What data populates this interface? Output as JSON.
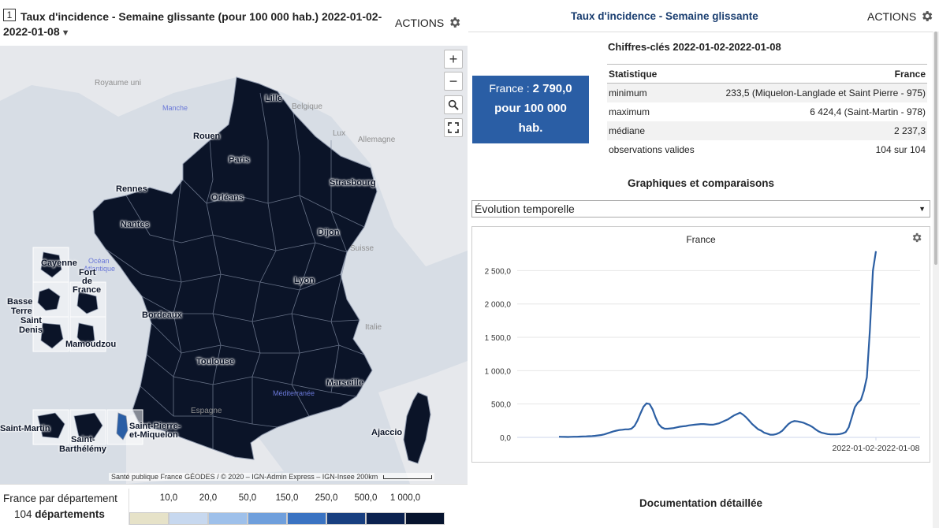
{
  "map_panel": {
    "number": "1",
    "title_line1": "Taux d'incidence - Semaine glissante (pour 100 000 hab.)  2022-01-02-",
    "title_line2": "2022-01-08",
    "actions_label": "ACTIONS",
    "zoom_in": "+",
    "zoom_out": "−",
    "attribution": "Santé publique France GÉODES / © 2020 – IGN-Admin Express – IGN-Insee  200km",
    "map_labels": {
      "royaume_uni": "Royaume uni",
      "belgique": "Belgique",
      "lux": "Lux",
      "allemagne": "Allemagne",
      "suisse": "Suisse",
      "italie": "Italie",
      "espagne": "Espagne",
      "manche": "Manche",
      "ocean_1": "Océan",
      "ocean_2": "Atlantique",
      "mediterranee": "Méditerranée"
    },
    "cities": {
      "lille": "Lille",
      "rouen": "Rouen",
      "paris": "Paris",
      "rennes": "Rennes",
      "orleans": "Orléans",
      "strasbourg": "Strasbourg",
      "nantes": "Nantes",
      "dijon": "Dijon",
      "lyon": "Lyon",
      "bordeaux": "Bordeaux",
      "toulouse": "Toulouse",
      "marseille": "Marseille",
      "ajaccio": "Ajaccio"
    },
    "overseas": {
      "cayenne": "Cayenne",
      "fort_1": "Fort",
      "fort_2": "de",
      "fort_3": "France",
      "basse_1": "Basse",
      "basse_2": "Terre",
      "saint_denis_1": "Saint",
      "saint_denis_2": "Denis",
      "mamoudzou": "Mamoudzou",
      "saint_martin": "Saint-Martin",
      "saint_barth_1": "Saint-",
      "saint_barth_2": "Barthélémy",
      "spm_1": "Saint-Pierre-",
      "spm_2": "et-Miquelon"
    },
    "legend": {
      "line1": "France par département",
      "count": "104",
      "unit": "départements",
      "ticks": [
        "10,0",
        "20,0",
        "50,0",
        "150,0",
        "250,0",
        "500,0",
        "1 000,0"
      ],
      "colors": [
        "#e6e2c8",
        "#c7d8ef",
        "#9ec0ea",
        "#6f9fdc",
        "#3a73c2",
        "#183f80",
        "#0b2250",
        "#07142e"
      ]
    }
  },
  "detail_panel": {
    "title": "Taux d'incidence - Semaine glissante",
    "actions_label": "ACTIONS",
    "kpi": {
      "prefix": "France : ",
      "value": "2 790,0",
      "line2": "pour 100 000",
      "line3": "hab."
    },
    "key_figures_title": "Chiffres-clés 2022-01-02-2022-01-08",
    "stats": {
      "col1": "Statistique",
      "col2": "France",
      "rows": [
        {
          "label": "minimum",
          "value": "233,5 (Miquelon-Langlade et Saint Pierre - 975)"
        },
        {
          "label": "maximum",
          "value": "6 424,4 (Saint-Martin - 978)"
        },
        {
          "label": "médiane",
          "value": "2 237,3"
        },
        {
          "label": "observations valides",
          "value": "104 sur 104"
        }
      ]
    },
    "charts_title": "Graphiques et comparaisons",
    "select_value": "Évolution temporelle",
    "documentation_title": "Documentation détaillée"
  },
  "colors": {
    "accent": "#2a5ea5",
    "title_blue": "#1a3e70",
    "map_fill": "#0b1428",
    "line": "#2c5fa3"
  },
  "chart_data": {
    "type": "line",
    "title": "France",
    "xlabel": "",
    "ylabel": "",
    "ylim": [
      0,
      2800
    ],
    "yticks": [
      0,
      500,
      1000,
      1500,
      2000,
      2500
    ],
    "ytick_labels": [
      "0,0",
      "500,0",
      "1 000,0",
      "1 500,0",
      "2 000,0",
      "2 500,0"
    ],
    "x_label_last": "2022-01-02-2022-01-08",
    "series": [
      {
        "name": "France",
        "values": [
          10,
          8,
          7,
          6,
          8,
          9,
          10,
          12,
          14,
          15,
          18,
          20,
          24,
          30,
          35,
          45,
          60,
          75,
          90,
          100,
          110,
          115,
          120,
          120,
          130,
          170,
          250,
          360,
          460,
          510,
          500,
          420,
          300,
          200,
          150,
          130,
          130,
          135,
          140,
          150,
          160,
          165,
          170,
          180,
          185,
          190,
          195,
          200,
          200,
          195,
          190,
          190,
          200,
          210,
          230,
          250,
          270,
          300,
          330,
          350,
          370,
          340,
          300,
          250,
          200,
          160,
          120,
          100,
          70,
          55,
          40,
          40,
          50,
          70,
          100,
          150,
          200,
          230,
          245,
          240,
          230,
          220,
          200,
          180,
          155,
          120,
          90,
          70,
          60,
          50,
          45,
          45,
          45,
          50,
          60,
          80,
          150,
          300,
          450,
          520,
          560,
          700,
          900,
          1600,
          2500,
          2790
        ]
      }
    ]
  }
}
